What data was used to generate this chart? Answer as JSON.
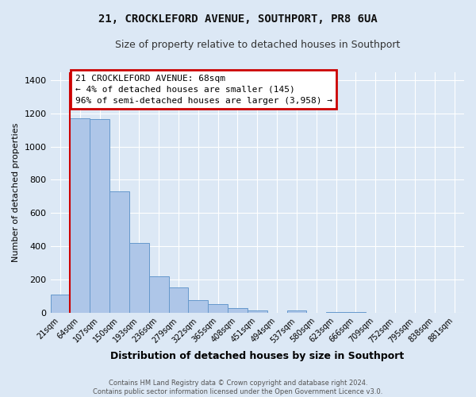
{
  "title": "21, CROCKLEFORD AVENUE, SOUTHPORT, PR8 6UA",
  "subtitle": "Size of property relative to detached houses in Southport",
  "xlabel": "Distribution of detached houses by size in Southport",
  "ylabel": "Number of detached properties",
  "bin_labels": [
    "21sqm",
    "64sqm",
    "107sqm",
    "150sqm",
    "193sqm",
    "236sqm",
    "279sqm",
    "322sqm",
    "365sqm",
    "408sqm",
    "451sqm",
    "494sqm",
    "537sqm",
    "580sqm",
    "623sqm",
    "666sqm",
    "709sqm",
    "752sqm",
    "795sqm",
    "838sqm",
    "881sqm"
  ],
  "bar_values": [
    110,
    1170,
    1165,
    730,
    420,
    220,
    150,
    75,
    50,
    30,
    15,
    0,
    15,
    0,
    5,
    5,
    0,
    0,
    0,
    0,
    0
  ],
  "bar_color": "#aec6e8",
  "bar_edge_color": "#6699cc",
  "annotation_box_text": "21 CROCKLEFORD AVENUE: 68sqm\n← 4% of detached houses are smaller (145)\n96% of semi-detached houses are larger (3,958) →",
  "annotation_box_color": "#ffffff",
  "annotation_box_edge_color": "#cc0000",
  "vline_color": "#cc0000",
  "ylim": [
    0,
    1450
  ],
  "yticks": [
    0,
    200,
    400,
    600,
    800,
    1000,
    1200,
    1400
  ],
  "background_color": "#dce8f5",
  "grid_color": "#ffffff",
  "footer_line1": "Contains HM Land Registry data © Crown copyright and database right 2024.",
  "footer_line2": "Contains public sector information licensed under the Open Government Licence v3.0."
}
